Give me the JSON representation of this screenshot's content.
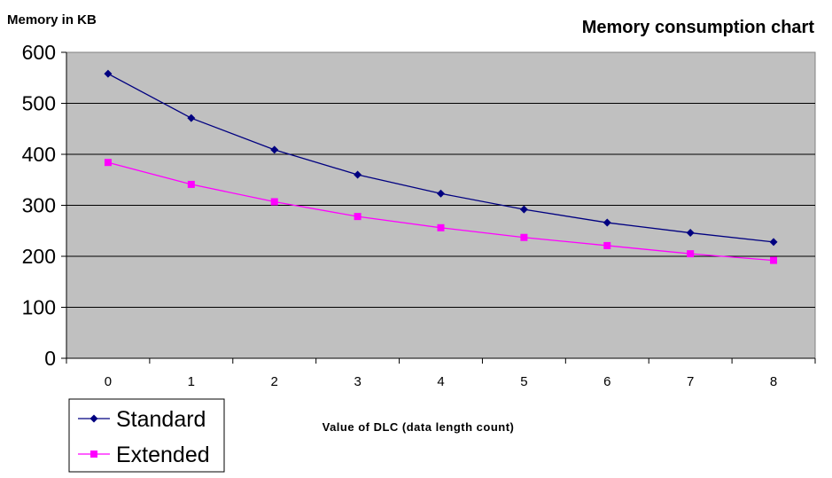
{
  "chart_data": {
    "type": "line",
    "title": "Memory consumption chart",
    "ylabel": "Memory in KB",
    "xlabel": "Value of DLC (data length count)",
    "categories": [
      "0",
      "1",
      "2",
      "3",
      "4",
      "5",
      "6",
      "7",
      "8"
    ],
    "ylim": [
      0,
      600
    ],
    "yticks": [
      "0",
      "100",
      "200",
      "300",
      "400",
      "500",
      "600"
    ],
    "grid": true,
    "legend_position": "bottom-left",
    "plot_background": "#c0c0c0",
    "series": [
      {
        "name": "Standard",
        "values": [
          558,
          471,
          409,
          360,
          323,
          292,
          266,
          246,
          228
        ],
        "color": "#000080",
        "marker": "diamond"
      },
      {
        "name": "Extended",
        "values": [
          384,
          341,
          307,
          278,
          256,
          237,
          221,
          205,
          192
        ],
        "color": "#ff00ff",
        "marker": "square"
      }
    ]
  }
}
